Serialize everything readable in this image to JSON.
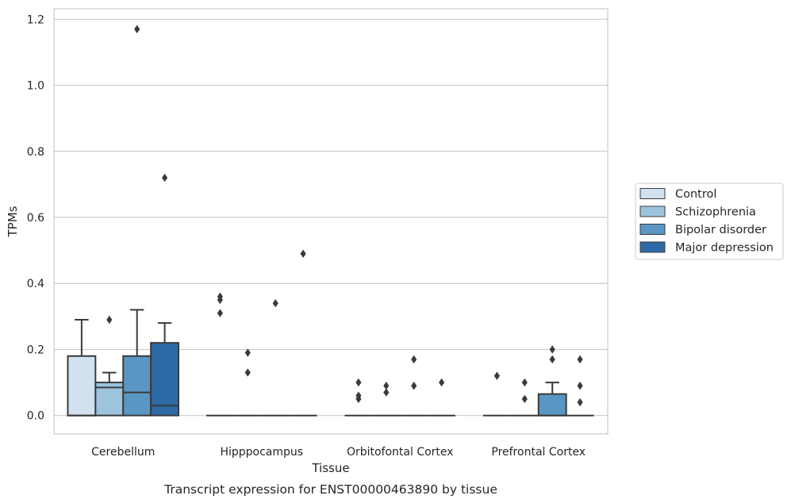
{
  "chart_data": {
    "type": "boxplot",
    "caption": "Transcript expression for ENST00000463890 by tissue",
    "xlabel": "Tissue",
    "ylabel": "TPMs",
    "ylim": [
      -0.056,
      1.232
    ],
    "yticks": [
      0.0,
      0.2,
      0.4,
      0.6,
      0.8,
      1.0,
      1.2
    ],
    "ytick_labels": [
      "0.0",
      "0.2",
      "0.4",
      "0.6",
      "0.8",
      "1.0",
      "1.2"
    ],
    "grid": "horizontal",
    "legend_position": "right",
    "categories": [
      "Cerebellum",
      "Hipppocampus",
      "Orbitofontal Cortex",
      "Prefrontal Cortex"
    ],
    "series": [
      {
        "name": "Control",
        "color": "#d1e1ef",
        "boxes": [
          {
            "q1": 0.0,
            "median": 0.0,
            "q3": 0.18,
            "whisker_low": 0.0,
            "whisker_high": 0.29,
            "outliers": []
          },
          {
            "q1": 0.0,
            "median": 0.0,
            "q3": 0.0,
            "whisker_low": 0.0,
            "whisker_high": 0.0,
            "outliers": [
              0.31,
              0.35,
              0.36
            ]
          },
          {
            "q1": 0.0,
            "median": 0.0,
            "q3": 0.0,
            "whisker_low": 0.0,
            "whisker_high": 0.0,
            "outliers": [
              0.05,
              0.06,
              0.1
            ]
          },
          {
            "q1": 0.0,
            "median": 0.0,
            "q3": 0.0,
            "whisker_low": 0.0,
            "whisker_high": 0.0,
            "outliers": [
              0.12
            ]
          }
        ]
      },
      {
        "name": "Schizophrenia",
        "color": "#9cc4dd",
        "boxes": [
          {
            "q1": 0.0,
            "median": 0.085,
            "q3": 0.1,
            "whisker_low": 0.0,
            "whisker_high": 0.13,
            "outliers": [
              0.29
            ]
          },
          {
            "q1": 0.0,
            "median": 0.0,
            "q3": 0.0,
            "whisker_low": 0.0,
            "whisker_high": 0.0,
            "outliers": [
              0.13,
              0.19
            ]
          },
          {
            "q1": 0.0,
            "median": 0.0,
            "q3": 0.0,
            "whisker_low": 0.0,
            "whisker_high": 0.0,
            "outliers": [
              0.07,
              0.09
            ]
          },
          {
            "q1": 0.0,
            "median": 0.0,
            "q3": 0.0,
            "whisker_low": 0.0,
            "whisker_high": 0.0,
            "outliers": [
              0.05,
              0.1
            ]
          }
        ]
      },
      {
        "name": "Bipolar disorder",
        "color": "#5a96c3",
        "boxes": [
          {
            "q1": 0.0,
            "median": 0.07,
            "q3": 0.18,
            "whisker_low": 0.0,
            "whisker_high": 0.32,
            "outliers": [
              1.17
            ]
          },
          {
            "q1": 0.0,
            "median": 0.0,
            "q3": 0.0,
            "whisker_low": 0.0,
            "whisker_high": 0.0,
            "outliers": [
              0.34
            ]
          },
          {
            "q1": 0.0,
            "median": 0.0,
            "q3": 0.0,
            "whisker_low": 0.0,
            "whisker_high": 0.0,
            "outliers": [
              0.09,
              0.17
            ]
          },
          {
            "q1": 0.0,
            "median": 0.0,
            "q3": 0.065,
            "whisker_low": 0.0,
            "whisker_high": 0.1,
            "outliers": [
              0.17,
              0.2
            ]
          }
        ]
      },
      {
        "name": "Major depression",
        "color": "#2d6aa6",
        "boxes": [
          {
            "q1": 0.0,
            "median": 0.03,
            "q3": 0.22,
            "whisker_low": 0.0,
            "whisker_high": 0.28,
            "outliers": [
              0.72
            ]
          },
          {
            "q1": 0.0,
            "median": 0.0,
            "q3": 0.0,
            "whisker_low": 0.0,
            "whisker_high": 0.0,
            "outliers": [
              0.49
            ]
          },
          {
            "q1": 0.0,
            "median": 0.0,
            "q3": 0.0,
            "whisker_low": 0.0,
            "whisker_high": 0.0,
            "outliers": [
              0.1
            ]
          },
          {
            "q1": 0.0,
            "median": 0.0,
            "q3": 0.0,
            "whisker_low": 0.0,
            "whisker_high": 0.0,
            "outliers": [
              0.04,
              0.09,
              0.17
            ]
          }
        ]
      }
    ]
  }
}
